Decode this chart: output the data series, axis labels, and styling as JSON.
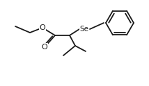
{
  "bg_color": "#ffffff",
  "line_color": "#1a1a1a",
  "line_width": 1.3,
  "font_size_label": 6.5,
  "fig_width": 2.14,
  "fig_height": 1.24,
  "dpi": 100,
  "Se_label": "Se",
  "O_ester_label": "O",
  "O_carbonyl_label": "O"
}
